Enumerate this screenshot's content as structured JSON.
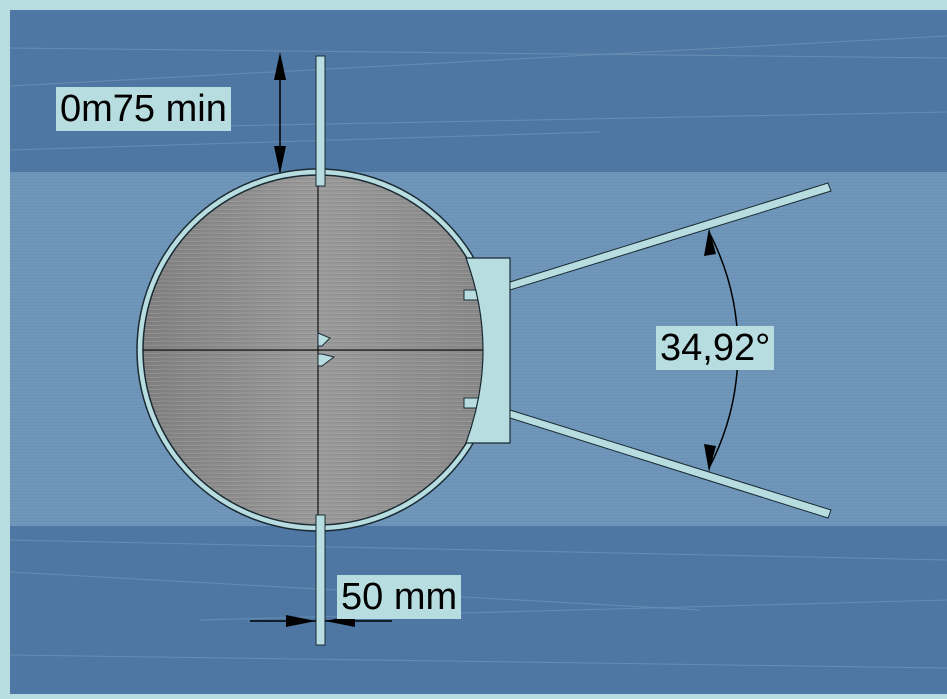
{
  "diagram": {
    "labels": {
      "min_clearance": "0m75 min",
      "opening_angle": "34,92°",
      "post_width": "50 mm"
    },
    "colors": {
      "frame": "#b8dde0",
      "water": "#4e77a3",
      "band": "#6a92b6",
      "disc": "#8e8e8e",
      "outline": "#1a2a33"
    }
  }
}
